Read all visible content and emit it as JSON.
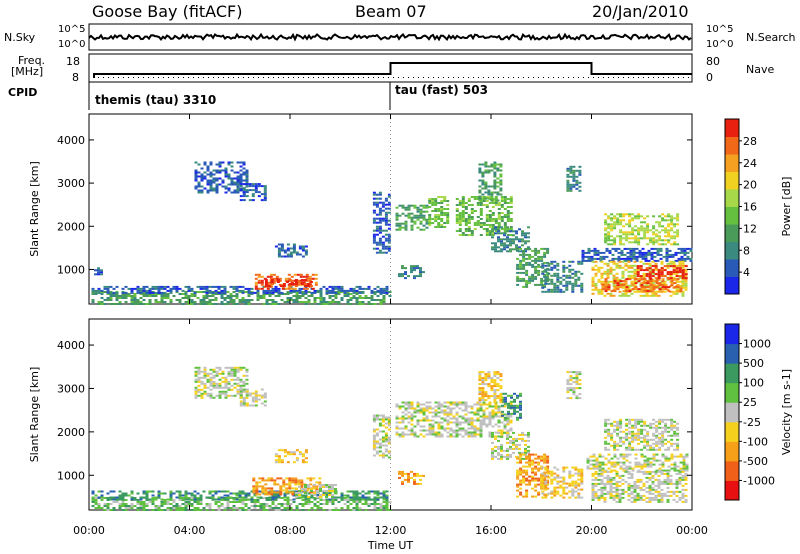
{
  "header": {
    "station": "Goose Bay (fitACF)",
    "beam": "Beam 07",
    "date": "20/Jan/2010"
  },
  "summary_panels": {
    "nsky_label": "N.Sky",
    "nsky_ticks": [
      "10^5",
      "10^0"
    ],
    "nsearch_label": "N.Search",
    "nsearch_ticks": [
      "10^5",
      "10^0"
    ],
    "freq_label_line1": "Freq.",
    "freq_label_line2": "[MHz]",
    "freq_ticks": [
      "18",
      "8"
    ],
    "nave_label": "Nave",
    "nave_ticks": [
      "80",
      "0"
    ],
    "cpid_label": "CPID",
    "cpid_segments": [
      {
        "name": "themis (tau) 3310",
        "start_hour": 0,
        "end_hour": 12
      },
      {
        "name": "tau (fast) 503",
        "start_hour": 12,
        "end_hour": 24
      }
    ]
  },
  "chart_data": [
    {
      "type": "heatmap",
      "panel": "power",
      "ylabel": "Slant Range [km]",
      "xlabel": "",
      "xlim": [
        0,
        24
      ],
      "ylim": [
        200,
        4600
      ],
      "yticks": [
        1000,
        2000,
        3000,
        4000
      ],
      "colorbar_label": "Power [dB]",
      "colorbar_ticks": [
        "4",
        "8",
        "12",
        "16",
        "20",
        "24",
        "28"
      ],
      "colorbar_range": [
        0,
        30
      ],
      "colorbar_colors": [
        "#1a26e8",
        "#2a5ab8",
        "#3a8a80",
        "#4a9a5a",
        "#66c040",
        "#a6d84a",
        "#f0d020",
        "#f5a020",
        "#f06818",
        "#e82010"
      ],
      "regions": [
        {
          "t0": 0.1,
          "t1": 12.0,
          "r0": 200,
          "r1": 500,
          "level": 3
        },
        {
          "t0": 0.1,
          "t1": 11.9,
          "r0": 450,
          "r1": 620,
          "level": 1
        },
        {
          "t0": 6.6,
          "t1": 9.0,
          "r0": 530,
          "r1": 900,
          "level": 8
        },
        {
          "t0": 7.0,
          "t1": 8.8,
          "r0": 600,
          "r1": 780,
          "level": 9
        },
        {
          "t0": 7.4,
          "t1": 8.6,
          "r0": 1300,
          "r1": 1600,
          "level": 1
        },
        {
          "t0": 4.2,
          "t1": 6.3,
          "r0": 2800,
          "r1": 3500,
          "level": 1
        },
        {
          "t0": 6.0,
          "t1": 7.0,
          "r0": 2600,
          "r1": 3000,
          "level": 1
        },
        {
          "t0": 0.2,
          "t1": 0.5,
          "r0": 900,
          "r1": 1050,
          "level": 1
        },
        {
          "t0": 11.3,
          "t1": 12.0,
          "r0": 1400,
          "r1": 2800,
          "level": 1
        },
        {
          "t0": 12.2,
          "t1": 13.4,
          "r0": 1900,
          "r1": 2500,
          "level": 3
        },
        {
          "t0": 13.5,
          "t1": 14.3,
          "r0": 2000,
          "r1": 2700,
          "level": 4
        },
        {
          "t0": 14.6,
          "t1": 16.8,
          "r0": 1800,
          "r1": 2700,
          "level": 4
        },
        {
          "t0": 16.0,
          "t1": 17.5,
          "r0": 1400,
          "r1": 2000,
          "level": 2
        },
        {
          "t0": 17.0,
          "t1": 18.3,
          "r0": 600,
          "r1": 1500,
          "level": 3
        },
        {
          "t0": 18.0,
          "t1": 19.6,
          "r0": 500,
          "r1": 1200,
          "level": 2
        },
        {
          "t0": 19.6,
          "t1": 24.0,
          "r0": 1200,
          "r1": 1500,
          "level": 1
        },
        {
          "t0": 20.0,
          "t1": 23.8,
          "r0": 400,
          "r1": 1200,
          "level": 6
        },
        {
          "t0": 20.4,
          "t1": 23.6,
          "r0": 500,
          "r1": 800,
          "level": 8
        },
        {
          "t0": 21.8,
          "t1": 23.8,
          "r0": 800,
          "r1": 1100,
          "level": 9
        },
        {
          "t0": 20.5,
          "t1": 23.4,
          "r0": 1600,
          "r1": 2300,
          "level": 5
        },
        {
          "t0": 12.3,
          "t1": 13.3,
          "r0": 800,
          "r1": 1100,
          "level": 2
        },
        {
          "t0": 15.5,
          "t1": 16.4,
          "r0": 2600,
          "r1": 3500,
          "level": 3
        },
        {
          "t0": 19.0,
          "t1": 19.5,
          "r0": 2800,
          "r1": 3400,
          "level": 2
        }
      ]
    },
    {
      "type": "heatmap",
      "panel": "velocity",
      "ylabel": "Slant Range [km]",
      "xlabel": "Time UT",
      "xlim": [
        0,
        24
      ],
      "ylim": [
        200,
        4600
      ],
      "xticks": [
        "00:00",
        "04:00",
        "08:00",
        "12:00",
        "16:00",
        "20:00",
        "00:00"
      ],
      "yticks": [
        1000,
        2000,
        3000,
        4000
      ],
      "colorbar_label": "Velocity [m s-1]",
      "colorbar_ticks": [
        "-1000",
        "-500",
        "-100",
        "-25",
        "25",
        "100",
        "500",
        "1000"
      ],
      "colorbar_colors": [
        "#e81010",
        "#f06018",
        "#f5a018",
        "#f5d01c",
        "#c0c0c0",
        "#60c040",
        "#3a9a60",
        "#2a60b0",
        "#1a26e8"
      ],
      "regions": [
        {
          "t0": 0.1,
          "t1": 12.0,
          "r0": 200,
          "r1": 500,
          "level": 5
        },
        {
          "t0": 0.1,
          "t1": 11.9,
          "r0": 450,
          "r1": 650,
          "level": 6
        },
        {
          "t0": 6.5,
          "t1": 9.2,
          "r0": 550,
          "r1": 950,
          "level": 2
        },
        {
          "t0": 8.2,
          "t1": 9.8,
          "r0": 500,
          "r1": 800,
          "level": 4
        },
        {
          "t0": 7.4,
          "t1": 8.6,
          "r0": 1300,
          "r1": 1600,
          "level": 3
        },
        {
          "t0": 4.2,
          "t1": 6.3,
          "r0": 2800,
          "r1": 3500,
          "level": 4
        },
        {
          "t0": 6.0,
          "t1": 7.0,
          "r0": 2600,
          "r1": 3000,
          "level": 4
        },
        {
          "t0": 11.3,
          "t1": 12.0,
          "r0": 1400,
          "r1": 2400,
          "level": 4
        },
        {
          "t0": 12.2,
          "t1": 16.8,
          "r0": 1900,
          "r1": 2700,
          "level": 4
        },
        {
          "t0": 16.4,
          "t1": 17.2,
          "r0": 2300,
          "r1": 2900,
          "level": 6
        },
        {
          "t0": 16.0,
          "t1": 17.5,
          "r0": 1400,
          "r1": 2000,
          "level": 4
        },
        {
          "t0": 17.0,
          "t1": 18.3,
          "r0": 500,
          "r1": 1500,
          "level": 2
        },
        {
          "t0": 18.0,
          "t1": 19.6,
          "r0": 500,
          "r1": 1200,
          "level": 3
        },
        {
          "t0": 19.8,
          "t1": 23.8,
          "r0": 1100,
          "r1": 1500,
          "level": 4
        },
        {
          "t0": 20.0,
          "t1": 23.8,
          "r0": 400,
          "r1": 1100,
          "level": 4
        },
        {
          "t0": 20.5,
          "t1": 23.4,
          "r0": 1600,
          "r1": 2300,
          "level": 4
        },
        {
          "t0": 12.3,
          "t1": 13.3,
          "r0": 800,
          "r1": 1100,
          "level": 2
        },
        {
          "t0": 15.5,
          "t1": 16.4,
          "r0": 2700,
          "r1": 3400,
          "level": 3
        },
        {
          "t0": 19.0,
          "t1": 19.5,
          "r0": 2800,
          "r1": 3400,
          "level": 4
        }
      ]
    }
  ]
}
